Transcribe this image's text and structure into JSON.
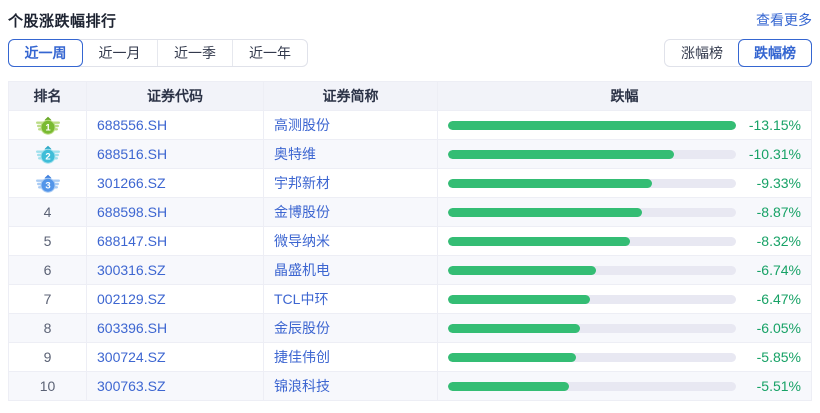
{
  "header": {
    "title": "个股涨跌幅排行",
    "more_label": "查看更多"
  },
  "period_tabs": [
    {
      "label": "近一周",
      "active": true
    },
    {
      "label": "近一月",
      "active": false
    },
    {
      "label": "近一季",
      "active": false
    },
    {
      "label": "近一年",
      "active": false
    }
  ],
  "board_tabs": [
    {
      "label": "涨幅榜",
      "active": false
    },
    {
      "label": "跌幅榜",
      "active": true
    }
  ],
  "table": {
    "columns": [
      "排名",
      "证券代码",
      "证券简称",
      "跌幅"
    ],
    "max_abs_change_pct": 13.15,
    "rows": [
      {
        "rank": 1,
        "code": "688556.SH",
        "name": "高测股份",
        "change_label": "-13.15%",
        "change_value": -13.15,
        "badge": {
          "main": "#79ba31",
          "light": "#bcdc86",
          "crown": "#68a827"
        }
      },
      {
        "rank": 2,
        "code": "688516.SH",
        "name": "奥特维",
        "change_label": "-10.31%",
        "change_value": -10.31,
        "badge": {
          "main": "#3fbdd8",
          "light": "#9fe0ed",
          "crown": "#2fa9c6"
        }
      },
      {
        "rank": 3,
        "code": "301266.SZ",
        "name": "宇邦新材",
        "change_label": "-9.33%",
        "change_value": -9.33,
        "badge": {
          "main": "#5395e9",
          "light": "#a9cbf4",
          "crown": "#3f7fdd"
        }
      },
      {
        "rank": 4,
        "code": "688598.SH",
        "name": "金博股份",
        "change_label": "-8.87%",
        "change_value": -8.87
      },
      {
        "rank": 5,
        "code": "688147.SH",
        "name": "微导纳米",
        "change_label": "-8.32%",
        "change_value": -8.32
      },
      {
        "rank": 6,
        "code": "300316.SZ",
        "name": "晶盛机电",
        "change_label": "-6.74%",
        "change_value": -6.74
      },
      {
        "rank": 7,
        "code": "002129.SZ",
        "name": "TCL中环",
        "change_label": "-6.47%",
        "change_value": -6.47
      },
      {
        "rank": 8,
        "code": "603396.SH",
        "name": "金辰股份",
        "change_label": "-6.05%",
        "change_value": -6.05
      },
      {
        "rank": 9,
        "code": "300724.SZ",
        "name": "捷佳伟创",
        "change_label": "-5.85%",
        "change_value": -5.85
      },
      {
        "rank": 10,
        "code": "300763.SZ",
        "name": "锦浪科技",
        "change_label": "-5.51%",
        "change_value": -5.51
      }
    ]
  },
  "colors": {
    "accent_blue": "#3566d1",
    "bar_green": "#34bd74",
    "text_green": "#17a266",
    "header_bg": "#f2f3f9",
    "zebra_bg": "#f7f8fc",
    "track_gray": "#e8e8f2"
  }
}
